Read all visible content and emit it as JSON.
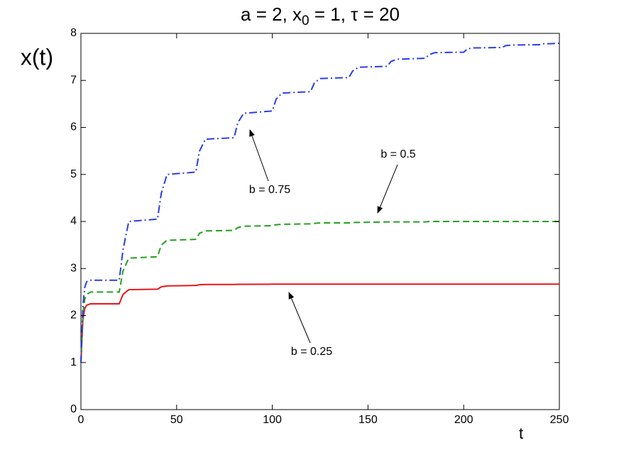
{
  "chart_data": {
    "type": "line",
    "title_parts": [
      "a = 2, x",
      "0",
      " = 1, τ = 20"
    ],
    "xlabel": "t",
    "ylabel": "x(t)",
    "x": [
      0,
      1,
      2,
      3,
      5,
      20,
      22,
      25,
      40,
      42,
      45,
      60,
      62,
      65,
      80,
      82,
      85,
      100,
      102,
      105,
      120,
      122,
      125,
      140,
      142,
      145,
      160,
      162,
      165,
      180,
      182,
      185,
      200,
      202,
      205,
      220,
      222,
      225,
      240,
      242,
      245,
      250
    ],
    "series": [
      {
        "color": "#e8151b",
        "dash": "none",
        "values": [
          1,
          1.9,
          2.15,
          2.22,
          2.25,
          2.25,
          2.45,
          2.55,
          2.56,
          2.61,
          2.63,
          2.64,
          2.655,
          2.66,
          2.66,
          2.665,
          2.665,
          2.667,
          2.667,
          2.667,
          2.667,
          2.667,
          2.667,
          2.667,
          2.667,
          2.667,
          2.667,
          2.667,
          2.667,
          2.667,
          2.667,
          2.667,
          2.667,
          2.667,
          2.667,
          2.667,
          2.667,
          2.667,
          2.667,
          2.667,
          2.667,
          2.667
        ]
      },
      {
        "color": "#21a21d",
        "dash": "9,5",
        "values": [
          1,
          2.0,
          2.35,
          2.45,
          2.5,
          2.5,
          2.95,
          3.22,
          3.25,
          3.5,
          3.6,
          3.62,
          3.75,
          3.8,
          3.81,
          3.87,
          3.9,
          3.91,
          3.93,
          3.94,
          3.95,
          3.96,
          3.97,
          3.97,
          3.98,
          3.98,
          3.99,
          3.99,
          3.99,
          3.99,
          4,
          4,
          4,
          4,
          4,
          4,
          4,
          4,
          4,
          4,
          4,
          4
        ]
      },
      {
        "color": "#2a3ee6",
        "dash": "11,4,2,4",
        "values": [
          1,
          2.2,
          2.6,
          2.72,
          2.75,
          2.75,
          3.4,
          4.0,
          4.05,
          4.6,
          5.0,
          5.05,
          5.5,
          5.75,
          5.78,
          6.1,
          6.3,
          6.35,
          6.6,
          6.73,
          6.76,
          6.95,
          7.04,
          7.06,
          7.2,
          7.28,
          7.3,
          7.4,
          7.45,
          7.47,
          7.55,
          7.59,
          7.6,
          7.67,
          7.69,
          7.7,
          7.74,
          7.75,
          7.76,
          7.78,
          7.78,
          7.79
        ]
      }
    ],
    "annotations": [
      "b = 0.75",
      "b = 0.5",
      "b = 0.25"
    ],
    "xlim": [
      0,
      250
    ],
    "xticks": [
      0,
      50,
      100,
      150,
      200,
      250
    ],
    "ylim": [
      0,
      8
    ],
    "yticks": [
      0,
      1,
      2,
      3,
      4,
      5,
      6,
      7,
      8
    ],
    "grid": false
  }
}
